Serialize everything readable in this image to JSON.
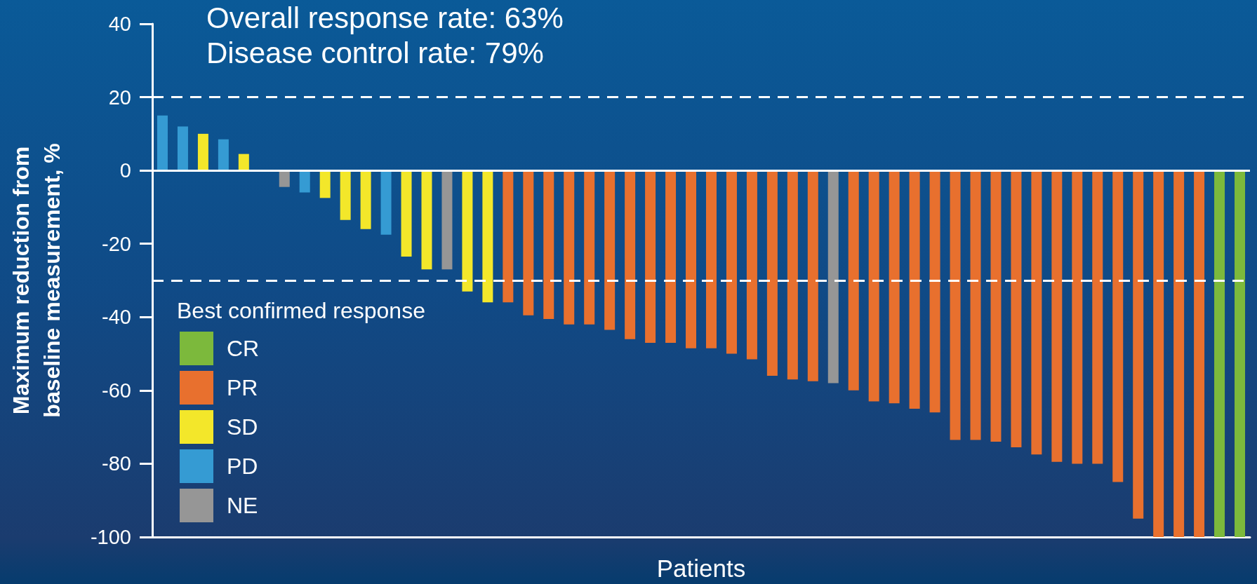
{
  "chart_data": {
    "type": "bar",
    "annotations": [
      "Overall response rate: 63%",
      "Disease control rate: 79%"
    ],
    "xlabel": "Patients",
    "ylabel": "Maximum reduction from\nbaseline measurement, %",
    "legend_title": "Best confirmed response",
    "categories": [
      null,
      null,
      null,
      null,
      null,
      null,
      null,
      null,
      null,
      null,
      null,
      null,
      null,
      null,
      null,
      null,
      null,
      null,
      null,
      null,
      null,
      null,
      null,
      null,
      null,
      null,
      null,
      null,
      null,
      null,
      null,
      null,
      null,
      null,
      null,
      null,
      null,
      null,
      null,
      null,
      null,
      null,
      null,
      null,
      null,
      null,
      null,
      null,
      null,
      null,
      null,
      null,
      null,
      null
    ],
    "series": [
      {
        "name": "CR",
        "color": "#7cb93c",
        "values": [
          null,
          null,
          null,
          null,
          null,
          null,
          null,
          null,
          null,
          null,
          null,
          null,
          null,
          null,
          null,
          null,
          null,
          null,
          null,
          null,
          null,
          null,
          null,
          null,
          null,
          null,
          null,
          null,
          null,
          null,
          null,
          null,
          null,
          null,
          null,
          null,
          null,
          null,
          null,
          null,
          null,
          null,
          null,
          null,
          null,
          null,
          null,
          null,
          null,
          null,
          null,
          null,
          -100,
          -100
        ]
      },
      {
        "name": "PR",
        "color": "#e8702e",
        "values": [
          null,
          null,
          null,
          null,
          null,
          null,
          null,
          null,
          null,
          null,
          null,
          null,
          null,
          null,
          null,
          null,
          null,
          -36,
          -39.5,
          -40.5,
          -42,
          -42,
          -43.5,
          -46,
          -47,
          -47,
          -48.5,
          -48.5,
          -50,
          -51.5,
          -56,
          -57,
          -57.5,
          null,
          -60,
          -63,
          -63.5,
          -65,
          -66,
          -73.5,
          -73.5,
          -74,
          -75.5,
          -77.5,
          -79.5,
          -80,
          -80,
          -85,
          -95,
          -100,
          -100,
          -100,
          null,
          null
        ]
      },
      {
        "name": "SD",
        "color": "#f3e72a",
        "values": [
          null,
          null,
          10,
          null,
          4.5,
          null,
          null,
          null,
          -7.5,
          -13.5,
          -16,
          null,
          -23.5,
          -27,
          null,
          -33,
          -36,
          null,
          null,
          null,
          null,
          null,
          null,
          null,
          null,
          null,
          null,
          null,
          null,
          null,
          null,
          null,
          null,
          null,
          null,
          null,
          null,
          null,
          null,
          null,
          null,
          null,
          null,
          null,
          null,
          null,
          null,
          null,
          null,
          null,
          null,
          null,
          null,
          null
        ]
      },
      {
        "name": "PD",
        "color": "#359bd3",
        "values": [
          15,
          12,
          null,
          8.5,
          null,
          null,
          null,
          -6,
          null,
          null,
          null,
          -17.5,
          null,
          null,
          null,
          null,
          null,
          null,
          null,
          null,
          null,
          null,
          null,
          null,
          null,
          null,
          null,
          null,
          null,
          null,
          null,
          null,
          null,
          null,
          null,
          null,
          null,
          null,
          null,
          null,
          null,
          null,
          null,
          null,
          null,
          null,
          null,
          null,
          null,
          null,
          null,
          null,
          null,
          null
        ]
      },
      {
        "name": "NE",
        "color": "#969696",
        "values": [
          null,
          null,
          null,
          null,
          null,
          null,
          -4.5,
          null,
          null,
          null,
          null,
          null,
          null,
          null,
          -27,
          null,
          null,
          null,
          null,
          null,
          null,
          null,
          null,
          null,
          null,
          null,
          null,
          null,
          null,
          null,
          null,
          null,
          null,
          -58,
          null,
          null,
          null,
          null,
          null,
          null,
          null,
          null,
          null,
          null,
          null,
          null,
          null,
          null,
          null,
          null,
          null,
          null,
          null,
          null
        ]
      }
    ],
    "ylim": [
      -100,
      40
    ],
    "yticks": [
      -100,
      -80,
      -60,
      -40,
      -20,
      0,
      20,
      40
    ],
    "ref_lines": [
      {
        "axis": "y",
        "value": 20,
        "color": "#ffffff",
        "line_style": "dashed"
      },
      {
        "axis": "y",
        "value": 0,
        "color": "#ffffff",
        "line_style": "solid"
      },
      {
        "axis": "y",
        "value": -30,
        "color": "#ffffff",
        "line_style": "dashed"
      }
    ],
    "legend": "bottom left",
    "tick_labels": "y"
  }
}
